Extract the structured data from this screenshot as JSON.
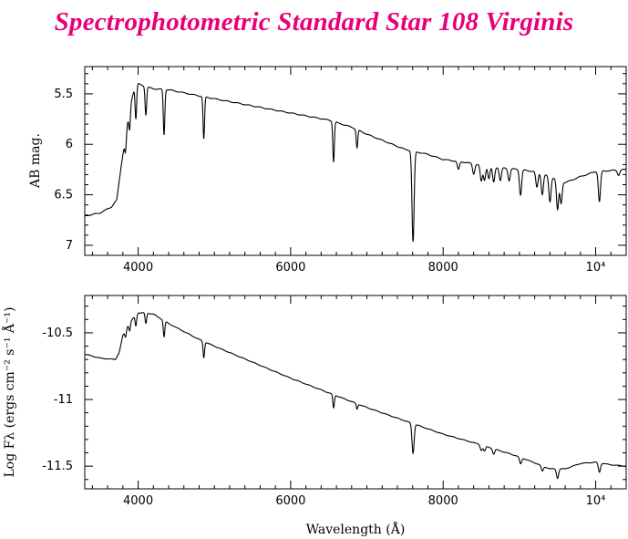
{
  "title": "Spectrophotometric Standard Star 108 Virginis",
  "chart_data": [
    {
      "type": "line",
      "name": "AB magnitude spectrum",
      "xlabel": "Wavelength (Å)",
      "ylabel": "AB mag.",
      "xlim": [
        3300,
        10400
      ],
      "ylim": [
        7.1,
        5.23
      ],
      "y_inverted": true,
      "xticks": [
        4000,
        6000,
        8000,
        10000
      ],
      "xtick_labels": [
        "4000",
        "6000",
        "8000",
        "10⁴"
      ],
      "yticks": [
        5.5,
        6,
        6.5,
        7
      ],
      "ytick_labels": [
        "5.5",
        "6",
        "6.5",
        "7"
      ],
      "continuum": [
        [
          3300,
          6.71
        ],
        [
          3500,
          6.68
        ],
        [
          3650,
          6.62
        ],
        [
          3720,
          6.55
        ],
        [
          3780,
          6.2
        ],
        [
          3850,
          5.85
        ],
        [
          3900,
          5.6
        ],
        [
          3950,
          5.45
        ],
        [
          4000,
          5.4
        ],
        [
          4100,
          5.43
        ],
        [
          4200,
          5.45
        ],
        [
          4400,
          5.46
        ],
        [
          4800,
          5.52
        ],
        [
          5500,
          5.62
        ],
        [
          6000,
          5.69
        ],
        [
          6500,
          5.76
        ],
        [
          6800,
          5.83
        ],
        [
          7000,
          5.9
        ],
        [
          7500,
          6.05
        ],
        [
          7800,
          6.1
        ],
        [
          8000,
          6.15
        ],
        [
          8300,
          6.18
        ],
        [
          8600,
          6.22
        ],
        [
          9000,
          6.25
        ],
        [
          9200,
          6.27
        ],
        [
          9400,
          6.32
        ],
        [
          9600,
          6.38
        ],
        [
          9800,
          6.32
        ],
        [
          10000,
          6.27
        ],
        [
          10200,
          6.26
        ],
        [
          10400,
          6.25
        ]
      ],
      "absorption_lines": [
        [
          3835,
          0.15
        ],
        [
          3889,
          0.2
        ],
        [
          3970,
          0.32
        ],
        [
          4101,
          0.28
        ],
        [
          4340,
          0.45
        ],
        [
          4861,
          0.42
        ],
        [
          6563,
          0.4
        ],
        [
          6870,
          0.18
        ],
        [
          7605,
          0.9
        ],
        [
          8200,
          0.08
        ],
        [
          8400,
          0.1
        ],
        [
          8500,
          0.16
        ],
        [
          8542,
          0.14
        ],
        [
          8600,
          0.12
        ],
        [
          8662,
          0.15
        ],
        [
          8750,
          0.13
        ],
        [
          8865,
          0.12
        ],
        [
          9015,
          0.25
        ],
        [
          9229,
          0.15
        ],
        [
          9300,
          0.2
        ],
        [
          9400,
          0.25
        ],
        [
          9500,
          0.3
        ],
        [
          9546,
          0.22
        ],
        [
          10049,
          0.3
        ],
        [
          10300,
          0.05
        ]
      ]
    },
    {
      "type": "line",
      "name": "Log flux spectrum",
      "xlabel": "Wavelength (Å)",
      "ylabel": "Log Fλ (ergs cm⁻² s⁻¹ Å⁻¹)",
      "xlim": [
        3300,
        10400
      ],
      "ylim": [
        -11.67,
        -10.22
      ],
      "y_inverted": false,
      "xticks": [
        4000,
        6000,
        8000,
        10000
      ],
      "xtick_labels": [
        "4000",
        "6000",
        "8000",
        "10⁴"
      ],
      "yticks": [
        -10.5,
        -11,
        -11.5
      ],
      "ytick_labels": [
        "-10.5",
        "-11",
        "-11.5"
      ],
      "continuum": [
        [
          3300,
          -10.66
        ],
        [
          3500,
          -10.69
        ],
        [
          3700,
          -10.7
        ],
        [
          3750,
          -10.65
        ],
        [
          3800,
          -10.52
        ],
        [
          3880,
          -10.43
        ],
        [
          3950,
          -10.38
        ],
        [
          4000,
          -10.35
        ],
        [
          4100,
          -10.35
        ],
        [
          4200,
          -10.36
        ],
        [
          4400,
          -10.43
        ],
        [
          4800,
          -10.55
        ],
        [
          5000,
          -10.6
        ],
        [
          5500,
          -10.72
        ],
        [
          6000,
          -10.84
        ],
        [
          6500,
          -10.95
        ],
        [
          7000,
          -11.06
        ],
        [
          7500,
          -11.16
        ],
        [
          8000,
          -11.26
        ],
        [
          8500,
          -11.34
        ],
        [
          9000,
          -11.43
        ],
        [
          9400,
          -11.52
        ],
        [
          9600,
          -11.52
        ],
        [
          9800,
          -11.48
        ],
        [
          10000,
          -11.47
        ],
        [
          10200,
          -11.49
        ],
        [
          10400,
          -11.5
        ]
      ],
      "absorption_lines": [
        [
          3835,
          0.05
        ],
        [
          3889,
          0.06
        ],
        [
          3970,
          0.08
        ],
        [
          4101,
          0.08
        ],
        [
          4340,
          0.12
        ],
        [
          4861,
          0.12
        ],
        [
          6563,
          0.1
        ],
        [
          6870,
          0.04
        ],
        [
          7605,
          0.22
        ],
        [
          8500,
          0.04
        ],
        [
          8542,
          0.04
        ],
        [
          8662,
          0.04
        ],
        [
          9015,
          0.05
        ],
        [
          9300,
          0.04
        ],
        [
          9500,
          0.07
        ],
        [
          10049,
          0.07
        ]
      ]
    }
  ]
}
